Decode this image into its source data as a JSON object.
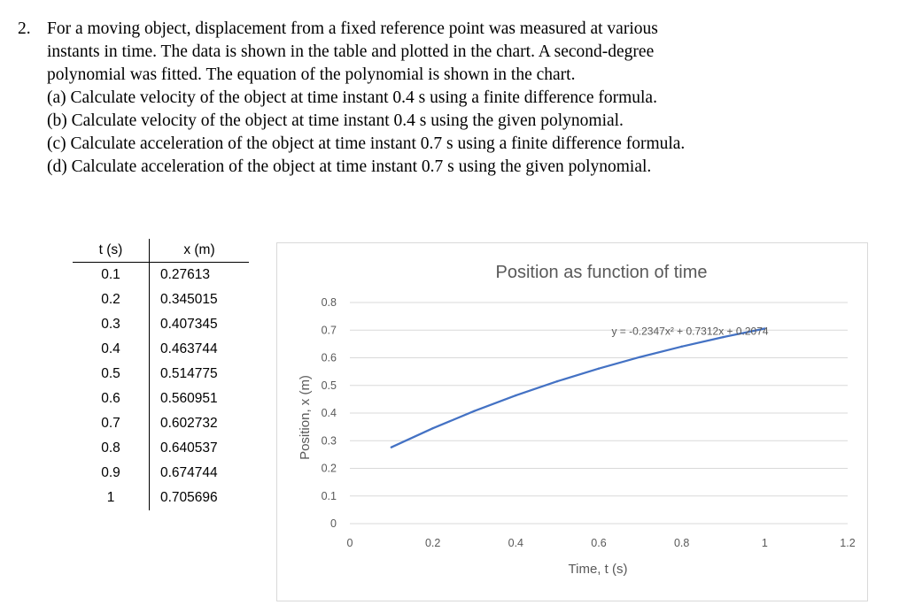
{
  "question": {
    "number": "2.",
    "intro_lines": [
      "For a moving object, displacement from a fixed reference point was measured at various",
      "instants in time. The data is shown in the table and plotted in the chart. A second-degree",
      "polynomial was fitted. The equation of the polynomial is shown in the chart."
    ],
    "parts": [
      "(a) Calculate velocity of the object at time instant 0.4 s using a finite difference formula.",
      "(b) Calculate velocity of the object at time instant 0.4 s using the given polynomial.",
      "(c) Calculate acceleration of the object at time instant 0.7 s using a finite difference formula.",
      "(d) Calculate acceleration of the object at time instant 0.7 s using the given polynomial."
    ]
  },
  "table": {
    "headers": [
      "t (s)",
      "x (m)"
    ],
    "rows": [
      [
        "0.1",
        "0.27613"
      ],
      [
        "0.2",
        "0.345015"
      ],
      [
        "0.3",
        "0.407345"
      ],
      [
        "0.4",
        "0.463744"
      ],
      [
        "0.5",
        "0.514775"
      ],
      [
        "0.6",
        "0.560951"
      ],
      [
        "0.7",
        "0.602732"
      ],
      [
        "0.8",
        "0.640537"
      ],
      [
        "0.9",
        "0.674744"
      ],
      [
        "1",
        "0.705696"
      ]
    ]
  },
  "chart_data": {
    "type": "line",
    "title": "Position as function of time",
    "xlabel": "Time, t (s)",
    "ylabel": "Position, x (m)",
    "xlim": [
      0,
      1.2
    ],
    "ylim": [
      0,
      0.8
    ],
    "x_ticks": [
      "0",
      "0.2",
      "0.4",
      "0.6",
      "0.8",
      "1",
      "1.2"
    ],
    "y_ticks": [
      "0",
      "0.1",
      "0.2",
      "0.3",
      "0.4",
      "0.5",
      "0.6",
      "0.7",
      "0.8"
    ],
    "grid": true,
    "x": [
      0.1,
      0.2,
      0.3,
      0.4,
      0.5,
      0.6,
      0.7,
      0.8,
      0.9,
      1.0
    ],
    "series": [
      {
        "values": [
          0.27613,
          0.345015,
          0.407345,
          0.463744,
          0.514775,
          0.560951,
          0.602732,
          0.640537,
          0.674744,
          0.705696
        ]
      }
    ],
    "trendline_equation": "y = -0.2347x² + 0.7312x + 0.2074",
    "colors": {
      "line": "#4472c4",
      "grid": "#d9d9d9",
      "border": "#d9d9d9",
      "text": "#595959"
    }
  }
}
